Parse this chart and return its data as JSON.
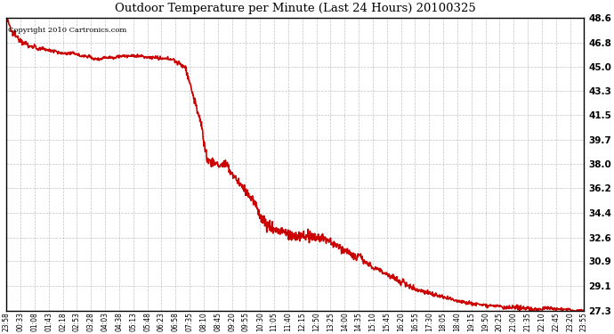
{
  "title": "Outdoor Temperature per Minute (Last 24 Hours) 20100325",
  "copyright_text": "Copyright 2010 Cartronics.com",
  "line_color": "#cc0000",
  "background_color": "#ffffff",
  "grid_color": "#bbbbbb",
  "ylim": [
    27.3,
    48.6
  ],
  "yticks": [
    27.3,
    29.1,
    30.9,
    32.6,
    34.4,
    36.2,
    38.0,
    39.7,
    41.5,
    43.3,
    45.0,
    46.8,
    48.6
  ],
  "xtick_labels": [
    "23:58",
    "00:33",
    "01:08",
    "01:43",
    "02:18",
    "02:53",
    "03:28",
    "04:03",
    "04:38",
    "05:13",
    "05:48",
    "06:23",
    "06:58",
    "07:35",
    "08:10",
    "08:45",
    "09:20",
    "09:55",
    "10:30",
    "11:05",
    "11:40",
    "12:15",
    "12:50",
    "13:25",
    "14:00",
    "14:35",
    "15:10",
    "15:45",
    "16:20",
    "16:55",
    "17:30",
    "18:05",
    "18:40",
    "19:15",
    "19:50",
    "20:25",
    "21:00",
    "21:35",
    "22:10",
    "22:45",
    "23:20",
    "23:55"
  ],
  "line_width": 1.2
}
